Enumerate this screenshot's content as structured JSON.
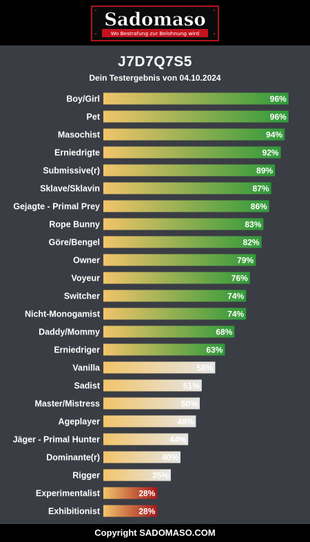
{
  "header": {
    "brand": "Sadomaso",
    "tagline": "Wo Bestrafung zur Belohnung wird"
  },
  "result": {
    "code": "J7D7Q7S5",
    "date_line": "Dein Testergebnis von 04.10.2024"
  },
  "footer": {
    "copyright": "Copyright SADOMASO.COM"
  },
  "chart_data": {
    "type": "bar",
    "orientation": "horizontal",
    "title": "",
    "xlabel": "",
    "ylabel": "",
    "xlim": [
      0,
      100
    ],
    "unit": "%",
    "grid": false,
    "categories": [
      "Boy/Girl",
      "Pet",
      "Masochist",
      "Erniedrigte",
      "Submissive(r)",
      "Sklave/Sklavin",
      "Gejagte - Primal Prey",
      "Rope Bunny",
      "Göre/Bengel",
      "Owner",
      "Voyeur",
      "Switcher",
      "Nicht-Monogamist",
      "Daddy/Mommy",
      "Erniedriger",
      "Vanilla",
      "Sadist",
      "Master/Mistress",
      "Ageplayer",
      "Jäger - Primal Hunter",
      "Dominante(r)",
      "Rigger",
      "Experimentalist",
      "Exhibitionist"
    ],
    "values": [
      96,
      96,
      94,
      92,
      89,
      87,
      86,
      83,
      82,
      79,
      76,
      74,
      74,
      68,
      63,
      58,
      51,
      50,
      48,
      44,
      40,
      35,
      28,
      28
    ],
    "colors": {
      "start": "#f2c46a",
      "high": "#2f9a3a",
      "medium": "#e6e6e6",
      "low": "#a3171c"
    }
  }
}
